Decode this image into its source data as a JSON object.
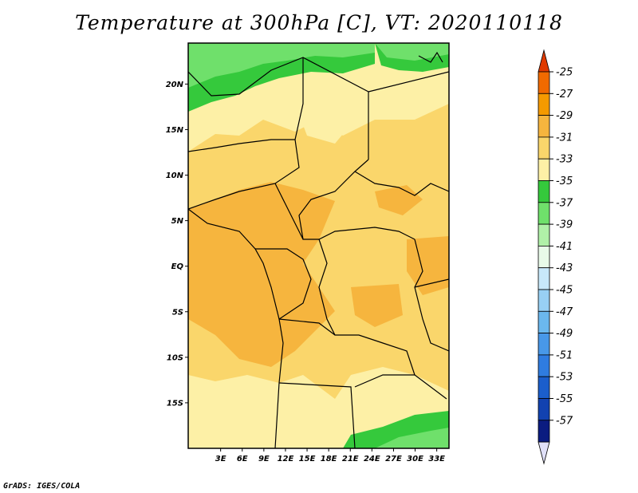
{
  "title": "Temperature at 300hPa [C], VT: 2020110118",
  "credit": "GrADS: IGES/COLA",
  "map": {
    "lat_labels": [
      {
        "text": "20N",
        "lat": 20
      },
      {
        "text": "15N",
        "lat": 15
      },
      {
        "text": "10N",
        "lat": 10
      },
      {
        "text": "5N",
        "lat": 5
      },
      {
        "text": "EQ",
        "lat": 0
      },
      {
        "text": "5S",
        "lat": -5
      },
      {
        "text": "10S",
        "lat": -10
      },
      {
        "text": "15S",
        "lat": -15
      }
    ],
    "lon_labels": [
      {
        "text": "3E",
        "lon": 3
      },
      {
        "text": "6E",
        "lon": 6
      },
      {
        "text": "9E",
        "lon": 9
      },
      {
        "text": "12E",
        "lon": 12
      },
      {
        "text": "15E",
        "lon": 15
      },
      {
        "text": "18E",
        "lon": 18
      },
      {
        "text": "21E",
        "lon": 21
      },
      {
        "text": "24E",
        "lon": 24
      },
      {
        "text": "27E",
        "lon": 27
      },
      {
        "text": "30E",
        "lon": 30
      },
      {
        "text": "33E",
        "lon": 33
      }
    ]
  },
  "colorbar": {
    "labels": [
      "-25",
      "-27",
      "-29",
      "-31",
      "-33",
      "-35",
      "-37",
      "-39",
      "-41",
      "-43",
      "-45",
      "-47",
      "-49",
      "-51",
      "-53",
      "-55",
      "-57"
    ],
    "colors": [
      "#e03a00",
      "#f06a00",
      "#f59a00",
      "#f6b53e",
      "#fad66b",
      "#fdf0a6",
      "#35c93c",
      "#6fe06b",
      "#b0f0a8",
      "#e8fae8",
      "#c8e8fa",
      "#98d0f4",
      "#6bb8ee",
      "#4898e8",
      "#2f7ce0",
      "#1b5ecc",
      "#1242b0",
      "#0b1c80",
      "#e0e0f8"
    ]
  }
}
